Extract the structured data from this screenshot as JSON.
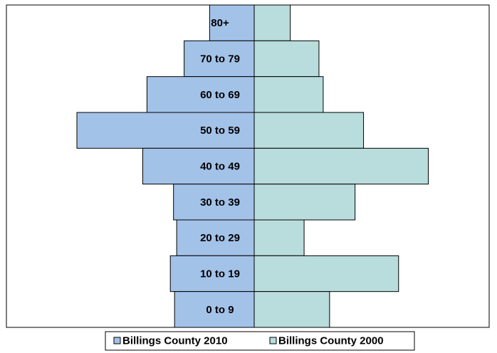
{
  "chart_data": {
    "type": "pyramid",
    "categories": [
      "80+",
      "70 to 79",
      "60 to 69",
      "50 to 59",
      "40 to 49",
      "30 to 39",
      "20 to 29",
      "10 to 19",
      "0 to 9"
    ],
    "series": [
      {
        "name": "Billings County 2010",
        "color": "#a3c2e8",
        "side": "left",
        "values": [
          42,
          66,
          101,
          167,
          105,
          76,
          73,
          79,
          75
        ]
      },
      {
        "name": "Billings County 2000",
        "color": "#b9dcdc",
        "side": "right",
        "values": [
          34,
          61,
          65,
          103,
          164,
          95,
          47,
          136,
          71
        ]
      }
    ],
    "legend": "bottom"
  }
}
